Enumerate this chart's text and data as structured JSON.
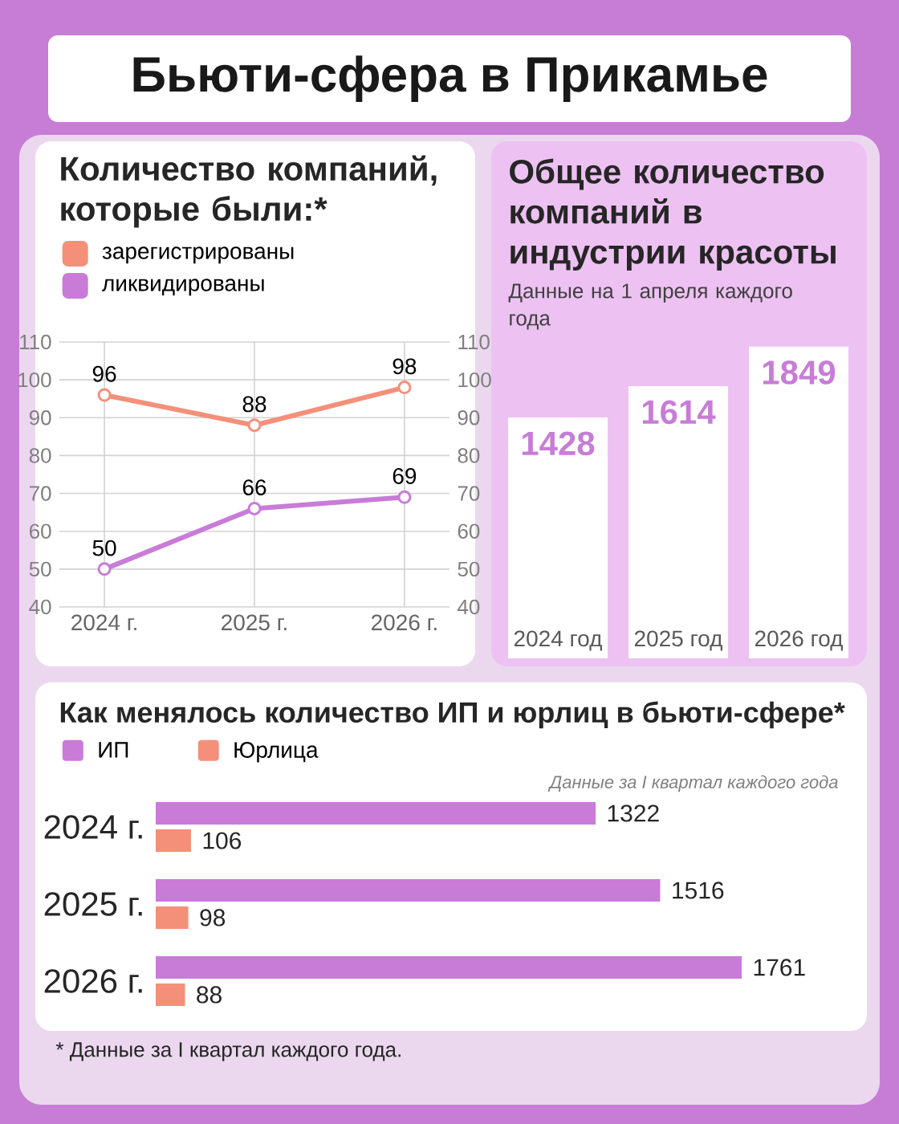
{
  "chart_data": [
    {
      "type": "line",
      "title": "Количество компаний, которые были:*",
      "annotations": [
        "Бьюти-сфера в Прикамье"
      ],
      "categories": [
        "2024 г.",
        "2025 г.",
        "2026 г."
      ],
      "series": [
        {
          "name": "зарегистрированы",
          "color": "#f4907a",
          "values": [
            96,
            88,
            98
          ]
        },
        {
          "name": "ликвидированы",
          "color": "#c97bd8",
          "values": [
            50,
            66,
            69
          ]
        }
      ],
      "ylim": [
        40,
        110
      ],
      "yticks": [
        40,
        50,
        60,
        70,
        80,
        90,
        100,
        110
      ],
      "y2lim": [
        40,
        110
      ],
      "y2ticks": [
        40,
        50,
        60,
        70,
        80,
        90,
        100,
        110
      ],
      "grid": true,
      "legend": "top left",
      "marker": "circle",
      "data_labels": true
    },
    {
      "type": "bar",
      "title": "Общее количество компаний в индустрии красоты",
      "subtitle": "Данные на 1 апреля каждого года",
      "categories": [
        "2024 год",
        "2025 год",
        "2026 год"
      ],
      "values": [
        1428,
        1614,
        1849
      ],
      "color": "#ffffff",
      "data_labels": true
    },
    {
      "type": "bar",
      "orientation": "horizontal",
      "title": "Как менялось количество ИП и юрлиц в бьюти-сфере*",
      "annotations": [
        "Данные за I квартал каждого года",
        "* Данные за I квартал каждого года."
      ],
      "categories": [
        "2024 г.",
        "2025 г.",
        "2026 г."
      ],
      "series": [
        {
          "name": "ИП",
          "color": "#c97bd8",
          "values": [
            1322,
            1516,
            1761
          ]
        },
        {
          "name": "Юрлица",
          "color": "#f4907a",
          "values": [
            106,
            98,
            88
          ]
        }
      ],
      "legend": "top left",
      "data_labels": true
    }
  ]
}
